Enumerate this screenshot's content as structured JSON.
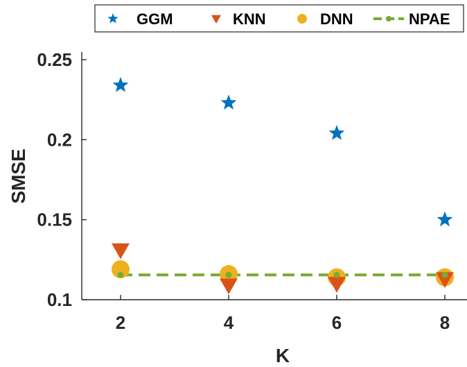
{
  "chart_data": {
    "type": "scatter",
    "title": "",
    "xlabel": "K",
    "ylabel": "SMSE",
    "x": [
      2,
      4,
      6,
      8
    ],
    "xticks": [
      "2",
      "4",
      "6",
      "8"
    ],
    "yticks": [
      "0.1",
      "0.15",
      "0.2",
      "0.25"
    ],
    "xlim": [
      1.5,
      8.2
    ],
    "ylim": [
      0.1,
      0.25
    ],
    "grid": false,
    "legend_position": "top",
    "series": [
      {
        "name": "GGM",
        "marker": "star",
        "color": "#0072BD",
        "values": [
          0.234,
          0.223,
          0.204,
          0.15
        ]
      },
      {
        "name": "KNN",
        "marker": "triangle-down",
        "color": "#D95319",
        "values": [
          0.131,
          0.109,
          0.11,
          0.113
        ]
      },
      {
        "name": "DNN",
        "marker": "circle",
        "color": "#EDB120",
        "values": [
          0.119,
          0.116,
          0.114,
          0.114
        ]
      },
      {
        "name": "NPAE",
        "marker": "dot-dashed-line",
        "color": "#77AC30",
        "values": [
          0.1155,
          0.1155,
          0.1155,
          0.1155
        ]
      }
    ]
  }
}
